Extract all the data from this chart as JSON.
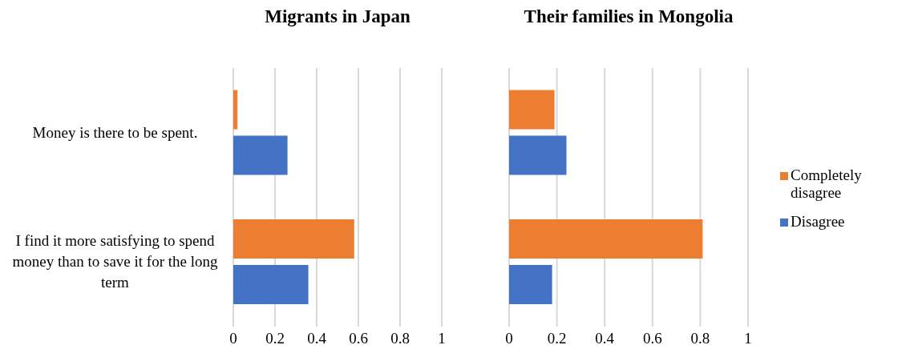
{
  "chart_data": [
    {
      "type": "bar",
      "orientation": "horizontal",
      "title": "Migrants in Japan",
      "categories": [
        "Money is there to be spent.",
        "I find it more satisfying to spend money than to save it for the long term"
      ],
      "series": [
        {
          "color": "#ed7d31",
          "values": [
            0.02,
            0.58
          ]
        },
        {
          "color": "#4472c4",
          "values": [
            0.26,
            0.36
          ]
        }
      ],
      "xlim": [
        0,
        1
      ],
      "xticks": [
        0,
        0.2,
        0.4,
        0.6,
        0.8,
        1
      ],
      "grid": "x",
      "legend": false
    },
    {
      "type": "bar",
      "orientation": "horizontal",
      "title": "Their families in Mongolia",
      "categories": [
        null,
        null
      ],
      "series": [
        {
          "name": "Completely disagree",
          "color": "#ed7d31",
          "values": [
            0.19,
            0.81
          ]
        },
        {
          "name": "Disagree",
          "color": "#4472c4",
          "values": [
            0.24,
            0.18
          ]
        }
      ],
      "xlim": [
        0,
        1
      ],
      "xticks": [
        0,
        0.2,
        0.4,
        0.6,
        0.8,
        1
      ],
      "grid": "x",
      "legend": "right",
      "tick_labels": "x"
    }
  ]
}
